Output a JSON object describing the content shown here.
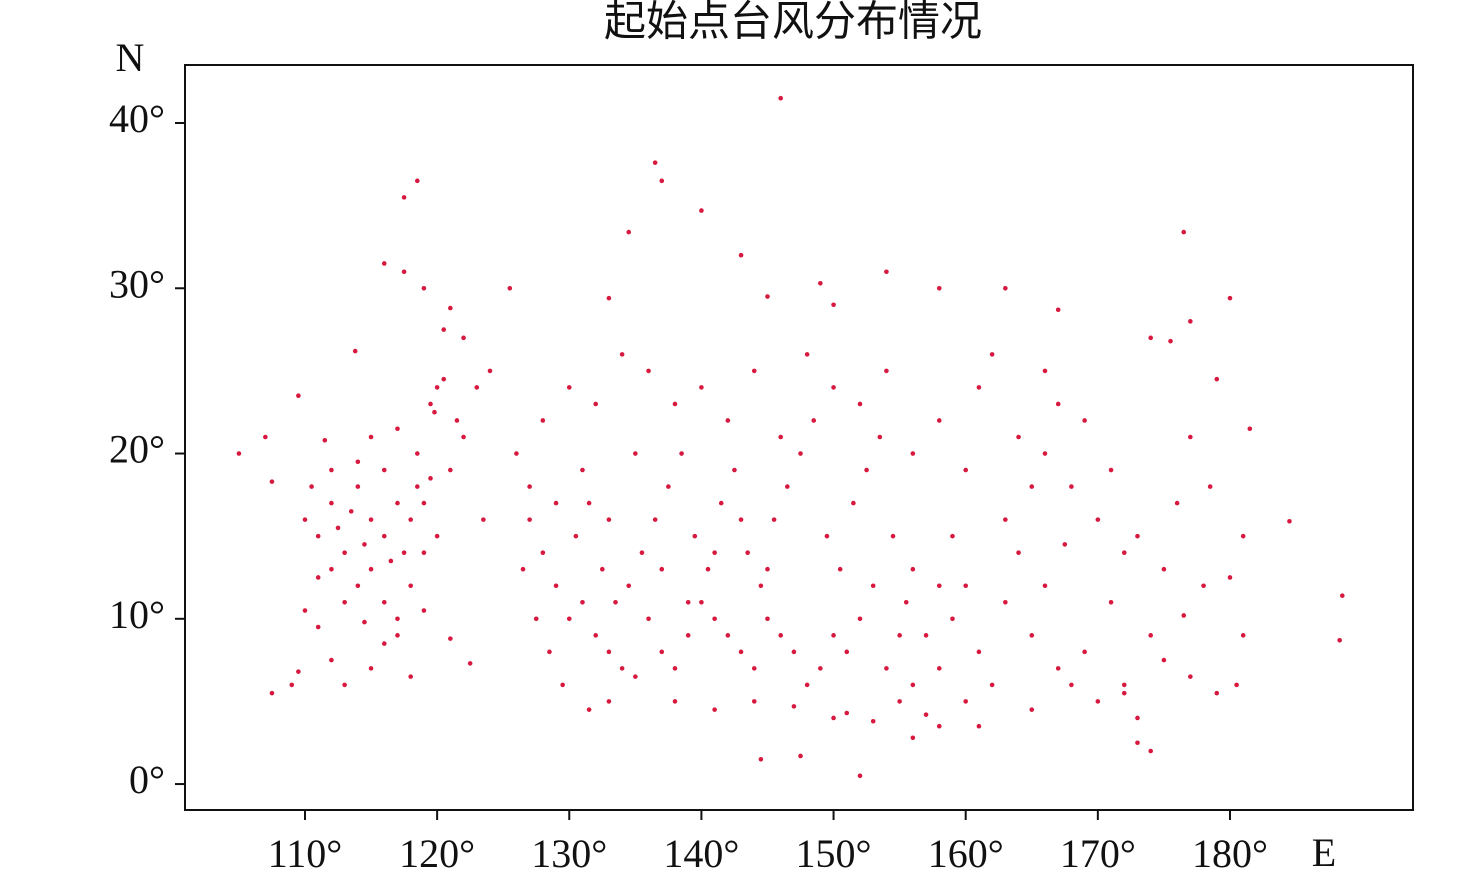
{
  "chart_data": {
    "type": "scatter",
    "title": "起始点台风分布情况",
    "xlabel": "E",
    "ylabel": "N",
    "color": "#d7193f",
    "xlim": [
      100.92,
      193.85
    ],
    "ylim": [
      -1.57,
      43.51
    ],
    "xticks": [
      {
        "value": 110,
        "label": "110°"
      },
      {
        "value": 120,
        "label": "120°"
      },
      {
        "value": 130,
        "label": "130°"
      },
      {
        "value": 140,
        "label": "140°"
      },
      {
        "value": 150,
        "label": "150°"
      },
      {
        "value": 160,
        "label": "160°"
      },
      {
        "value": 170,
        "label": "170°"
      },
      {
        "value": 180,
        "label": "180°"
      }
    ],
    "yticks": [
      {
        "value": 0,
        "label": "0°"
      },
      {
        "value": 10,
        "label": "10°"
      },
      {
        "value": 20,
        "label": "20°"
      },
      {
        "value": 30,
        "label": "30°"
      },
      {
        "value": 40,
        "label": "40°"
      }
    ],
    "x": [
      110,
      111,
      112,
      113,
      114,
      115,
      116,
      117,
      118,
      119,
      119.5,
      120,
      119.8,
      120.5,
      118.5,
      117,
      115,
      116,
      114,
      112,
      111,
      112,
      113,
      114,
      115,
      116,
      117,
      118,
      119,
      120,
      110,
      111,
      112,
      113,
      115,
      116,
      118,
      121,
      122.5,
      109.5,
      110.5,
      112.5,
      113.5,
      114.5,
      116.5,
      117.5,
      118.5,
      119.5,
      121,
      122,
      123,
      124,
      122,
      120.5,
      121.5,
      123.5,
      119,
      117,
      114.5,
      111.5,
      126,
      127,
      128,
      129,
      130,
      131,
      132,
      133,
      134,
      135,
      126.5,
      127.5,
      128.5,
      129.5,
      130.5,
      131.5,
      132.5,
      133.5,
      134.5,
      135.5,
      136,
      137,
      138,
      139,
      140,
      141,
      142,
      143,
      144,
      145,
      146,
      147,
      148,
      149,
      150,
      151,
      152,
      153,
      154,
      155,
      136.5,
      137.5,
      138.5,
      139.5,
      140.5,
      141.5,
      142.5,
      143.5,
      144.5,
      145.5,
      146.5,
      147.5,
      148.5,
      149.5,
      150.5,
      151.5,
      152.5,
      153.5,
      154.5,
      155.5,
      156,
      157,
      158,
      159,
      160,
      161,
      162,
      163,
      164,
      165,
      128,
      130,
      132,
      134,
      136,
      138,
      140,
      142,
      144,
      146,
      148,
      150,
      152,
      154,
      156,
      158,
      160,
      161,
      162,
      164,
      127,
      129,
      131,
      133,
      135,
      137,
      139,
      141,
      143,
      145,
      133,
      131.5,
      138,
      141,
      144,
      147,
      150,
      151,
      153,
      156,
      157,
      158,
      160,
      161,
      155,
      156,
      158,
      159,
      163,
      165,
      166,
      167,
      168,
      169,
      170,
      171,
      172,
      173,
      174,
      175,
      166,
      167,
      168,
      169,
      170,
      171,
      172,
      173,
      175,
      176,
      177,
      178,
      179,
      180,
      181,
      181,
      181.5,
      179,
      177,
      166,
      174,
      175.5,
      178.5,
      180.5,
      177,
      176.5,
      173,
      172,
      165,
      167.5,
      146,
      136.5,
      137,
      118.5,
      117.5,
      140,
      134.5,
      176.5,
      143,
      116,
      117.5,
      154,
      149,
      125.5,
      119,
      158,
      163,
      180,
      133,
      145,
      121,
      150,
      167,
      188.5,
      188.3,
      184.5,
      174,
      144.5,
      152,
      147.5,
      105,
      107,
      107.5,
      107.5,
      109,
      109.5,
      113.8
    ],
    "values": [
      16,
      15,
      17,
      14,
      18,
      16,
      15,
      17,
      16,
      17,
      23,
      24,
      22.5,
      24.5,
      20,
      21.5,
      21,
      19,
      19.5,
      19,
      12.5,
      13,
      11,
      12,
      13,
      11,
      10,
      12,
      14,
      15,
      10.5,
      9.5,
      7.5,
      6,
      7,
      8.5,
      6.5,
      8.8,
      7.3,
      6.8,
      18,
      15.5,
      16.5,
      14.5,
      13.5,
      14,
      18,
      18.5,
      19,
      21,
      24,
      25,
      27,
      27.5,
      22,
      16,
      10.5,
      9,
      9.8,
      20.8,
      20,
      18,
      14,
      12,
      10,
      11,
      9,
      8,
      7,
      6.5,
      13,
      10,
      8,
      6,
      15,
      17,
      13,
      11,
      12,
      14,
      10,
      8,
      7,
      9,
      11,
      10,
      9,
      8,
      7,
      10,
      9,
      8,
      6,
      7,
      9,
      8,
      10,
      12,
      7,
      5,
      16,
      18,
      20,
      15,
      13,
      17,
      19,
      14,
      12,
      16,
      18,
      20,
      22,
      15,
      13,
      17,
      19,
      21,
      15,
      11,
      13,
      9,
      7,
      10,
      12,
      8,
      6,
      11,
      14,
      9,
      22,
      24,
      23,
      26,
      25,
      23,
      24,
      22,
      25,
      21,
      26,
      24,
      23,
      25,
      20,
      22,
      19,
      24,
      26,
      21,
      16,
      17,
      19,
      16,
      20,
      13,
      11,
      14,
      16,
      13,
      5,
      4.5,
      5,
      4.5,
      5,
      4.7,
      4,
      4.3,
      3.8,
      2.8,
      4.2,
      3.5,
      5,
      3.5,
      9,
      6,
      12,
      15,
      16,
      18,
      12,
      7,
      6,
      8,
      5,
      11,
      6,
      4,
      9,
      13,
      20,
      23,
      18,
      22,
      16,
      19,
      14,
      15,
      7.5,
      17,
      21,
      12,
      5.5,
      12.5,
      15,
      9,
      21.5,
      24.5,
      28,
      25,
      27,
      26.8,
      18,
      6,
      6.5,
      10.2,
      2.5,
      5.5,
      4.5,
      14.5,
      41.5,
      37.6,
      36.5,
      36.5,
      35.5,
      34.7,
      33.4,
      33.4,
      32,
      31.5,
      31,
      31,
      30.3,
      30,
      30,
      30,
      30,
      29.4,
      29.4,
      29.5,
      28.8,
      29,
      28.7,
      11.4,
      8.7,
      15.9,
      2,
      1.5,
      0.5,
      1.7,
      20,
      21,
      18.3,
      5.5,
      6,
      23.5,
      26.2
    ]
  }
}
